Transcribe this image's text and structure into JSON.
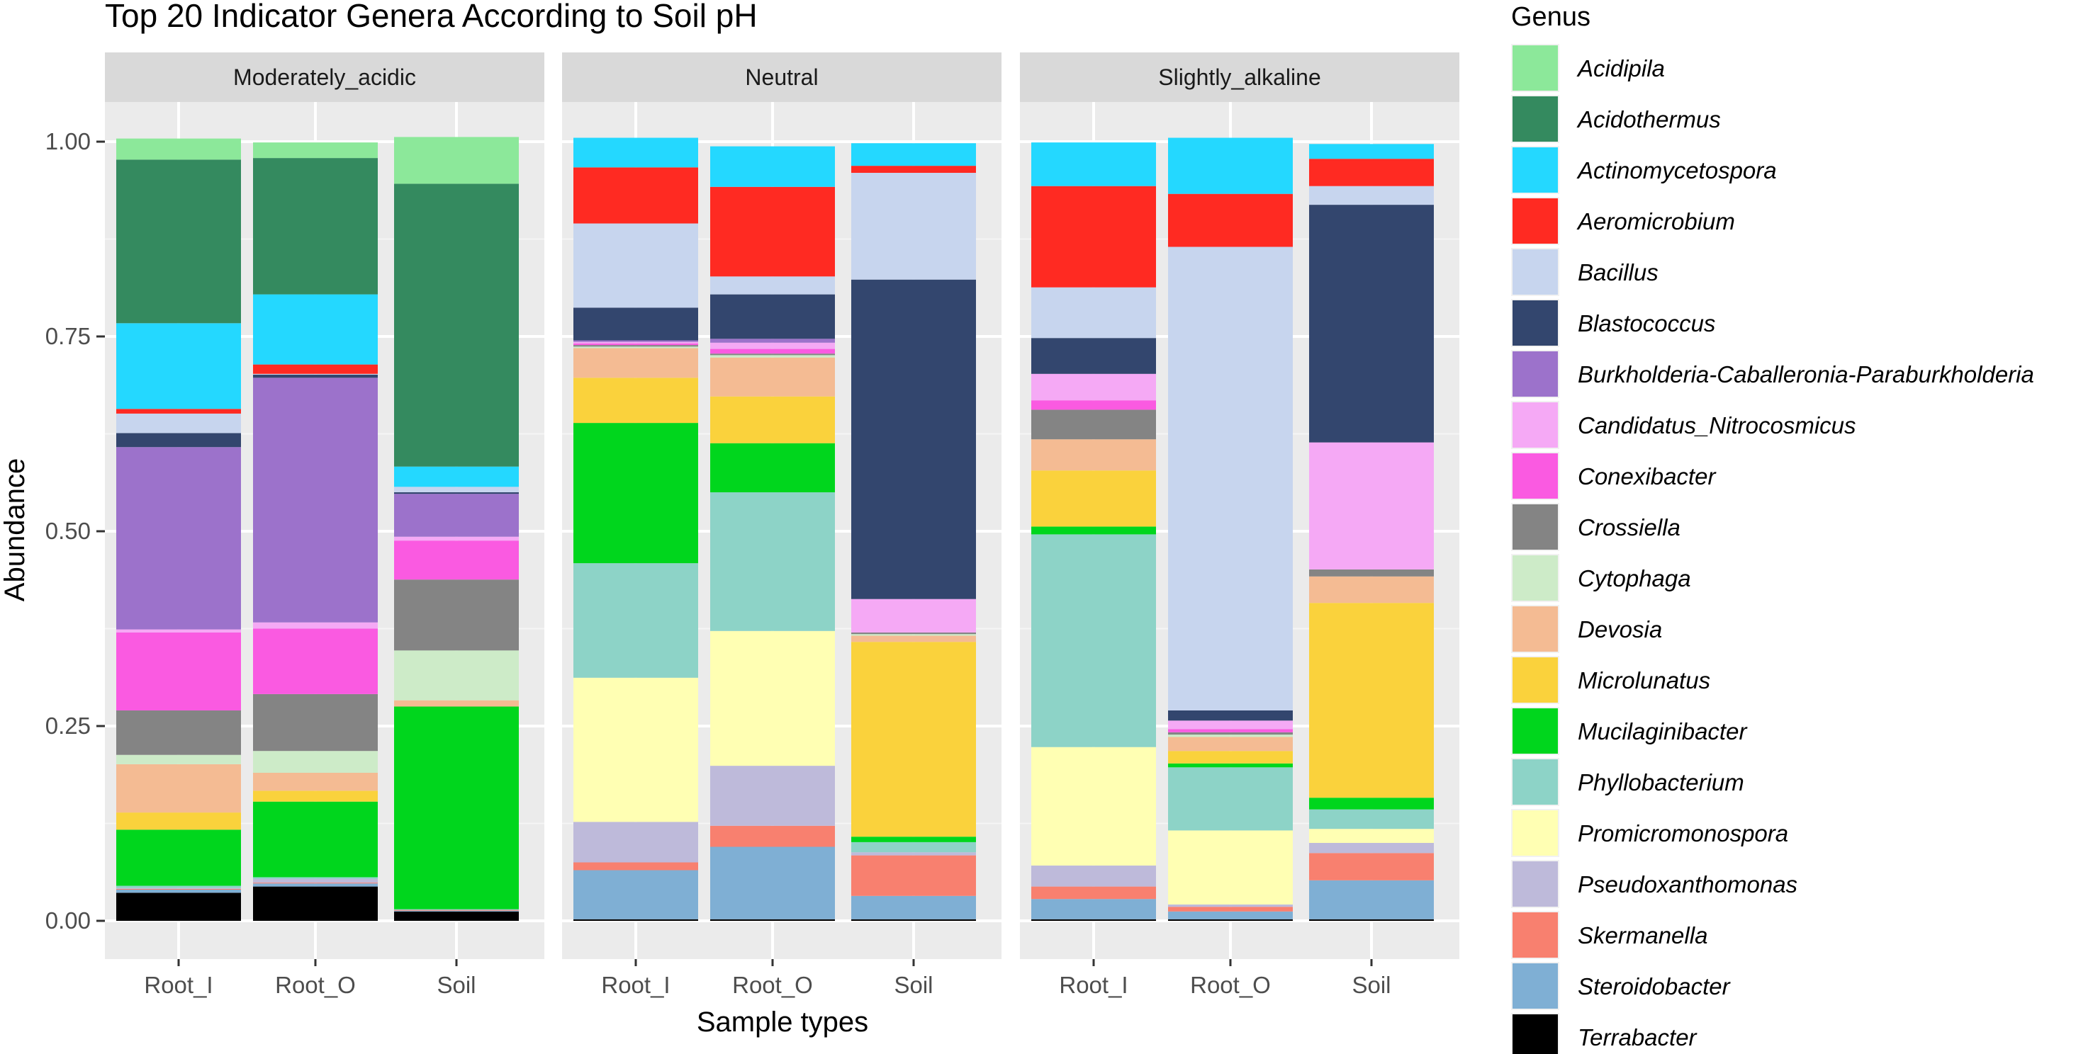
{
  "chart_data": {
    "type": "bar",
    "stacked": true,
    "title": "Top 20 Indicator Genera According to Soil pH",
    "xlabel": "Sample types",
    "ylabel": "Abundance",
    "ylim": [
      0,
      1
    ],
    "yticks": [
      0,
      0.25,
      0.5,
      0.75,
      1.0
    ],
    "ytick_labels": [
      "0.00",
      "0.25",
      "0.50",
      "0.75",
      "1.00"
    ],
    "legend_title": "Genus",
    "legend_position": "right",
    "categories": [
      "Root_I",
      "Root_O",
      "Soil"
    ],
    "facets": [
      "Moderately_acidic",
      "Neutral",
      "Slightly_alkaline"
    ],
    "series": [
      {
        "name": "Terrabacter",
        "color": "#000000",
        "values": [
          [
            0.036,
            0.044,
            0.012
          ],
          [
            0.002,
            0.002,
            0.002
          ],
          [
            0.002,
            0.002,
            0.002
          ]
        ]
      },
      {
        "name": "Steroidobacter",
        "color": "#7FAFD4",
        "values": [
          [
            0.004,
            0.004,
            0.001
          ],
          [
            0.063,
            0.093,
            0.03
          ],
          [
            0.026,
            0.01,
            0.05
          ]
        ]
      },
      {
        "name": "Skermanella",
        "color": "#F8806F",
        "values": [
          [
            0.001,
            0.001,
            0.001
          ],
          [
            0.01,
            0.027,
            0.052
          ],
          [
            0.016,
            0.006,
            0.035
          ]
        ]
      },
      {
        "name": "Pseudoxanthomonas",
        "color": "#BEBADA",
        "values": [
          [
            0.001,
            0.005,
            0.0
          ],
          [
            0.052,
            0.077,
            0.004
          ],
          [
            0.027,
            0.003,
            0.013
          ]
        ]
      },
      {
        "name": "Promicromonospora",
        "color": "#FFFFB3",
        "values": [
          [
            0.0,
            0.0,
            0.0
          ],
          [
            0.185,
            0.173,
            0.0
          ],
          [
            0.152,
            0.095,
            0.018
          ]
        ]
      },
      {
        "name": "Phyllobacterium",
        "color": "#8DD3C7",
        "values": [
          [
            0.003,
            0.002,
            0.001
          ],
          [
            0.147,
            0.178,
            0.013
          ],
          [
            0.273,
            0.081,
            0.025
          ]
        ]
      },
      {
        "name": "Mucilaginibacter",
        "color": "#00D61D",
        "values": [
          [
            0.072,
            0.097,
            0.26
          ],
          [
            0.18,
            0.063,
            0.007
          ],
          [
            0.01,
            0.005,
            0.015
          ]
        ]
      },
      {
        "name": "Microlunatus",
        "color": "#FAD23C",
        "values": [
          [
            0.022,
            0.014,
            0.0
          ],
          [
            0.058,
            0.06,
            0.25
          ],
          [
            0.072,
            0.016,
            0.25
          ]
        ]
      },
      {
        "name": "Devosia",
        "color": "#F4BB93",
        "values": [
          [
            0.062,
            0.023,
            0.008
          ],
          [
            0.038,
            0.05,
            0.008
          ],
          [
            0.04,
            0.018,
            0.034
          ]
        ]
      },
      {
        "name": "Cytophaga",
        "color": "#CDEBC8",
        "values": [
          [
            0.012,
            0.028,
            0.064
          ],
          [
            0.002,
            0.003,
            0.002
          ],
          [
            0.0,
            0.003,
            0.0
          ]
        ]
      },
      {
        "name": "Crossiella",
        "color": "#848484",
        "values": [
          [
            0.057,
            0.073,
            0.091
          ],
          [
            0.002,
            0.002,
            0.002
          ],
          [
            0.038,
            0.003,
            0.009
          ]
        ]
      },
      {
        "name": "Conexibacter",
        "color": "#FA5AE1",
        "values": [
          [
            0.1,
            0.084,
            0.05
          ],
          [
            0.002,
            0.006,
            0.0
          ],
          [
            0.012,
            0.004,
            0.0
          ]
        ]
      },
      {
        "name": "Candidatus_Nitrocosmicus",
        "color": "#F5A9F5",
        "values": [
          [
            0.004,
            0.008,
            0.005
          ],
          [
            0.002,
            0.008,
            0.043
          ],
          [
            0.034,
            0.011,
            0.163
          ]
        ]
      },
      {
        "name": "Burkholderia-Caballeronia-Paraburkholderia",
        "color": "#9C72CB",
        "values": [
          [
            0.234,
            0.314,
            0.055
          ],
          [
            0.002,
            0.005,
            0.0
          ],
          [
            0.0,
            0.0,
            0.0
          ]
        ]
      },
      {
        "name": "Blastococcus",
        "color": "#33466E",
        "values": [
          [
            0.018,
            0.004,
            0.002
          ],
          [
            0.042,
            0.057,
            0.41
          ],
          [
            0.046,
            0.013,
            0.305
          ]
        ]
      },
      {
        "name": "Bacillus",
        "color": "#C7D5EE",
        "values": [
          [
            0.025,
            0.001,
            0.007
          ],
          [
            0.108,
            0.023,
            0.137
          ],
          [
            0.065,
            0.595,
            0.024
          ]
        ]
      },
      {
        "name": "Aeromicrobium",
        "color": "#FF2A22",
        "values": [
          [
            0.006,
            0.012,
            0.0
          ],
          [
            0.072,
            0.115,
            0.009
          ],
          [
            0.13,
            0.068,
            0.035
          ]
        ]
      },
      {
        "name": "Actinomycetospora",
        "color": "#24D8FF",
        "values": [
          [
            0.11,
            0.09,
            0.026
          ],
          [
            0.038,
            0.052,
            0.029
          ],
          [
            0.056,
            0.072,
            0.019
          ]
        ]
      },
      {
        "name": "Acidothermus",
        "color": "#348A5F",
        "values": [
          [
            0.21,
            0.175,
            0.363
          ],
          [
            0.0,
            0.0,
            0.0
          ],
          [
            0.0,
            0.0,
            0.0
          ]
        ]
      },
      {
        "name": "Acidipila",
        "color": "#8CE89A",
        "values": [
          [
            0.027,
            0.02,
            0.06
          ],
          [
            0.0,
            0.0,
            0.0
          ],
          [
            0.0,
            0.0,
            0.0
          ]
        ]
      }
    ]
  }
}
